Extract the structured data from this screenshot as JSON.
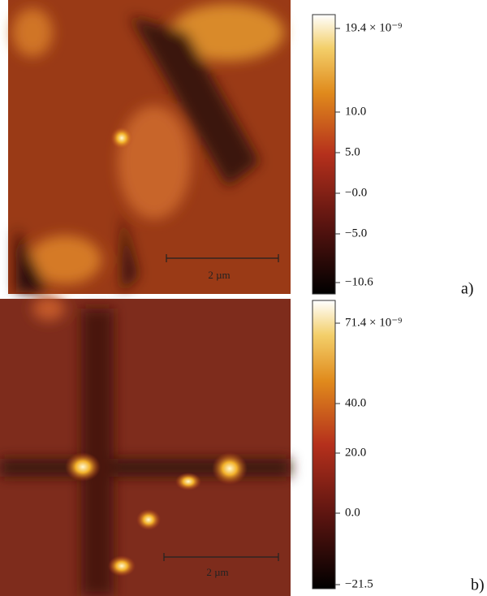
{
  "panels": [
    {
      "label": "a)",
      "scale_bar": "2 µm",
      "colorbar_labels": [
        "19.4 × 10⁻⁹",
        "10.0",
        "5.0",
        "−0.0",
        "−5.0",
        "−10.6"
      ]
    },
    {
      "label": "b)",
      "scale_bar": "2 µm",
      "colorbar_labels": [
        "71.4 × 10⁻⁹",
        "40.0",
        "20.0",
        "0.0",
        "−21.5"
      ]
    }
  ]
}
